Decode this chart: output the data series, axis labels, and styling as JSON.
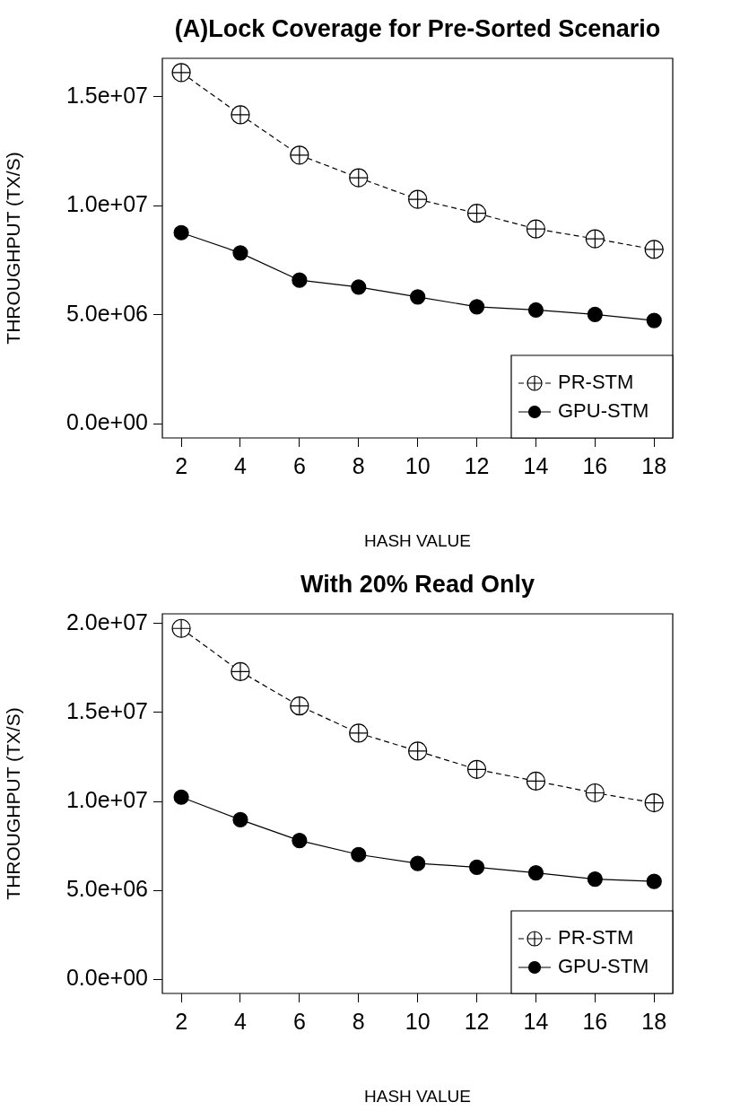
{
  "chart_data": [
    {
      "type": "line",
      "title": "(A)Lock Coverage for Pre-Sorted Scenario",
      "xlabel": "HASH VALUE",
      "ylabel": "THROUGHPUT (TX/S)",
      "x": [
        2,
        4,
        6,
        8,
        10,
        12,
        14,
        16,
        18
      ],
      "series": [
        {
          "name": "PR-STM",
          "color": "#000000",
          "line_style": "dashed",
          "marker": "circle",
          "values": [
            16120000,
            14180000,
            12330000,
            11290000,
            10300000,
            9660000,
            8940000,
            8490000,
            8000000
          ]
        },
        {
          "name": "GPU-STM",
          "color": "#000000",
          "line_style": "solid",
          "marker": "circle",
          "values": [
            8770000,
            7840000,
            6590000,
            6270000,
            5820000,
            5370000,
            5220000,
            5020000,
            4740000
          ]
        }
      ],
      "xlim": [
        1.36,
        18.63
      ],
      "xticks": [
        2,
        4,
        6,
        8,
        10,
        12,
        14,
        16,
        18
      ],
      "ylim": [
        -650000,
        16770000
      ],
      "yticks": [
        {
          "value": 0,
          "label": "0.0e+00"
        },
        {
          "value": 5000000,
          "label": "5.0e+06"
        },
        {
          "value": 10000000,
          "label": "1.0e+07"
        },
        {
          "value": 15000000,
          "label": "1.5e+07"
        }
      ],
      "grid": false,
      "legend": "bottom right"
    },
    {
      "type": "line",
      "title": "With 20% Read Only",
      "xlabel": "HASH VALUE",
      "ylabel": "THROUGHPUT (TX/S)",
      "x": [
        2,
        4,
        6,
        8,
        10,
        12,
        14,
        16,
        18
      ],
      "series": [
        {
          "name": "PR-STM",
          "color": "#000000",
          "line_style": "dashed",
          "marker": "circle",
          "values": [
            19730000,
            17300000,
            15370000,
            13840000,
            12830000,
            11800000,
            11140000,
            10480000,
            9920000
          ]
        },
        {
          "name": "GPU-STM",
          "color": "#000000",
          "line_style": "solid",
          "marker": "circle",
          "values": [
            10240000,
            8970000,
            7800000,
            7010000,
            6510000,
            6300000,
            5980000,
            5630000,
            5500000
          ]
        }
      ],
      "xlim": [
        1.36,
        18.63
      ],
      "xticks": [
        2,
        4,
        6,
        8,
        10,
        12,
        14,
        16,
        18
      ],
      "ylim": [
        -800000,
        20550000
      ],
      "yticks": [
        {
          "value": 0,
          "label": "0.0e+00"
        },
        {
          "value": 5000000,
          "label": "5.0e+06"
        },
        {
          "value": 10000000,
          "label": "1.0e+07"
        },
        {
          "value": 15000000,
          "label": "1.5e+07"
        },
        {
          "value": 20000000,
          "label": "2.0e+07"
        }
      ],
      "grid": false,
      "legend": "bottom right"
    }
  ]
}
